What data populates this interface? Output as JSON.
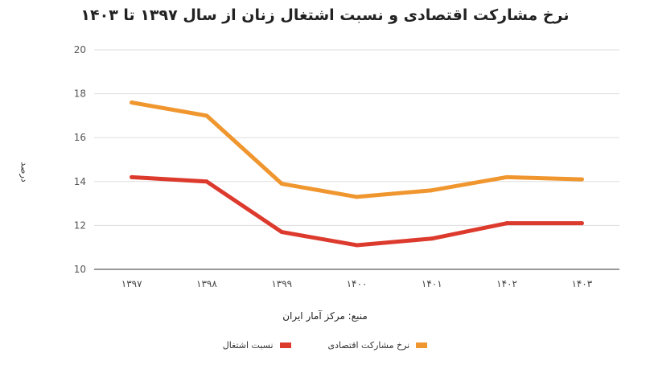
{
  "chart_data": {
    "type": "line",
    "title": "نرخ مشارکت اقتصادی و نسبت اشتغال زنان از سال ۱۳۹۷ تا ۱۴۰۳",
    "xlabel": "منبع: مرکز آمار ایران",
    "ylabel": "درصد",
    "categories": [
      "۱۳۹۷",
      "۱۳۹۸",
      "۱۳۹۹",
      "۱۴۰۰",
      "۱۴۰۱",
      "۱۴۰۲",
      "۱۴۰۳"
    ],
    "ylim": [
      10,
      20
    ],
    "yticks": [
      10,
      12,
      14,
      16,
      18,
      20
    ],
    "grid": true,
    "legend_position": "bottom",
    "series": [
      {
        "name": "نرخ مشارکت اقتصادی",
        "color": "#f0962e",
        "values": [
          17.6,
          17.0,
          13.9,
          13.3,
          13.6,
          14.2,
          14.1
        ]
      },
      {
        "name": "نسبت اشتغال",
        "color": "#dd3a2e",
        "values": [
          14.2,
          14.0,
          11.7,
          11.1,
          11.4,
          12.1,
          12.1
        ]
      }
    ]
  }
}
